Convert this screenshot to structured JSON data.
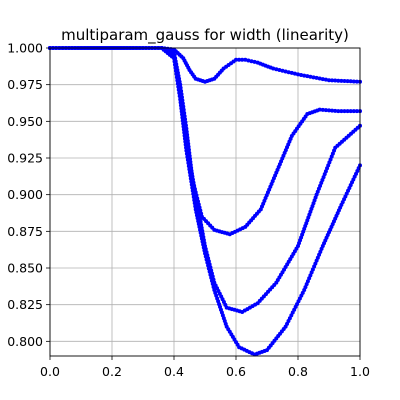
{
  "chart_data": {
    "type": "scatter",
    "title": "multiparam_gauss for width (linearity)",
    "xlabel": "",
    "ylabel": "",
    "xlim": [
      0.0,
      1.0
    ],
    "ylim": [
      0.79,
      1.0
    ],
    "grid": true,
    "marker_color": "#0000ff",
    "x_ticks": [
      0.0,
      0.2,
      0.4,
      0.6,
      0.8,
      1.0
    ],
    "x_tick_labels": [
      "0.0",
      "0.2",
      "0.4",
      "0.6",
      "0.8",
      "1.0"
    ],
    "y_ticks": [
      0.8,
      0.825,
      0.85,
      0.875,
      0.9,
      0.925,
      0.95,
      0.975,
      1.0
    ],
    "y_tick_labels": [
      "0.800",
      "0.825",
      "0.850",
      "0.875",
      "0.900",
      "0.925",
      "0.950",
      "0.975",
      "1.000"
    ],
    "series": [
      {
        "values": [
          [
            0.0,
            1.0
          ],
          [
            0.1,
            1.0
          ],
          [
            0.2,
            1.0
          ],
          [
            0.3,
            1.0
          ],
          [
            0.36,
            1.0
          ],
          [
            0.4,
            0.999
          ],
          [
            0.43,
            0.993
          ],
          [
            0.45,
            0.985
          ],
          [
            0.47,
            0.979
          ],
          [
            0.5,
            0.977
          ],
          [
            0.53,
            0.979
          ],
          [
            0.56,
            0.986
          ],
          [
            0.6,
            0.992
          ],
          [
            0.63,
            0.992
          ],
          [
            0.67,
            0.99
          ],
          [
            0.72,
            0.986
          ],
          [
            0.8,
            0.982
          ],
          [
            0.9,
            0.978
          ],
          [
            1.0,
            0.977
          ]
        ]
      },
      {
        "values": [
          [
            0.0,
            1.0
          ],
          [
            0.2,
            1.0
          ],
          [
            0.36,
            1.0
          ],
          [
            0.4,
            0.997
          ],
          [
            0.42,
            0.975
          ],
          [
            0.44,
            0.945
          ],
          [
            0.46,
            0.91
          ],
          [
            0.49,
            0.885
          ],
          [
            0.53,
            0.876
          ],
          [
            0.58,
            0.873
          ],
          [
            0.63,
            0.878
          ],
          [
            0.68,
            0.89
          ],
          [
            0.73,
            0.915
          ],
          [
            0.78,
            0.94
          ],
          [
            0.83,
            0.955
          ],
          [
            0.87,
            0.958
          ],
          [
            0.93,
            0.957
          ],
          [
            1.0,
            0.957
          ]
        ]
      },
      {
        "values": [
          [
            0.0,
            1.0
          ],
          [
            0.36,
            1.0
          ],
          [
            0.4,
            0.995
          ],
          [
            0.42,
            0.97
          ],
          [
            0.44,
            0.935
          ],
          [
            0.47,
            0.9
          ],
          [
            0.5,
            0.865
          ],
          [
            0.53,
            0.84
          ],
          [
            0.57,
            0.823
          ],
          [
            0.62,
            0.82
          ],
          [
            0.67,
            0.826
          ],
          [
            0.73,
            0.84
          ],
          [
            0.8,
            0.865
          ],
          [
            0.86,
            0.9
          ],
          [
            0.92,
            0.932
          ],
          [
            1.0,
            0.947
          ]
        ]
      },
      {
        "values": [
          [
            0.0,
            1.0
          ],
          [
            0.36,
            1.0
          ],
          [
            0.4,
            0.993
          ],
          [
            0.42,
            0.965
          ],
          [
            0.44,
            0.93
          ],
          [
            0.47,
            0.89
          ],
          [
            0.5,
            0.86
          ],
          [
            0.53,
            0.835
          ],
          [
            0.57,
            0.81
          ],
          [
            0.61,
            0.796
          ],
          [
            0.66,
            0.791
          ],
          [
            0.7,
            0.794
          ],
          [
            0.76,
            0.81
          ],
          [
            0.82,
            0.835
          ],
          [
            0.88,
            0.865
          ],
          [
            0.94,
            0.893
          ],
          [
            1.0,
            0.92
          ]
        ]
      }
    ]
  }
}
